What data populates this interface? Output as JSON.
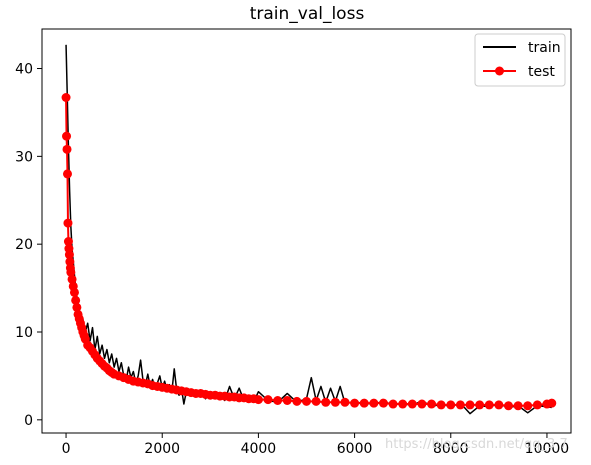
{
  "chart_data": {
    "type": "line",
    "title": "train_val_loss",
    "xlabel": "",
    "ylabel": "",
    "xlim": [
      -500,
      10500
    ],
    "ylim": [
      -1.5,
      44.5
    ],
    "xticks": [
      0,
      2000,
      4000,
      6000,
      8000,
      10000
    ],
    "yticks": [
      0,
      10,
      20,
      30,
      40
    ],
    "grid": false,
    "legend_position": "top-right",
    "series": [
      {
        "name": "train",
        "color": "#000000",
        "marker": "none",
        "x": [
          0,
          25,
          50,
          75,
          100,
          125,
          150,
          175,
          200,
          225,
          250,
          275,
          300,
          325,
          350,
          375,
          400,
          450,
          500,
          550,
          600,
          650,
          700,
          750,
          800,
          850,
          900,
          950,
          1000,
          1050,
          1100,
          1150,
          1200,
          1250,
          1300,
          1350,
          1400,
          1450,
          1500,
          1550,
          1600,
          1650,
          1700,
          1750,
          1800,
          1850,
          1900,
          1950,
          2000,
          2050,
          2100,
          2150,
          2200,
          2250,
          2300,
          2350,
          2400,
          2450,
          2500,
          2600,
          2700,
          2800,
          2900,
          3000,
          3100,
          3200,
          3300,
          3400,
          3500,
          3600,
          3700,
          3800,
          3900,
          4000,
          4200,
          4400,
          4600,
          4800,
          5000,
          5100,
          5200,
          5300,
          5400,
          5500,
          5600,
          5700,
          5800,
          6000,
          6200,
          6400,
          6600,
          6800,
          7000,
          7200,
          7400,
          7600,
          7800,
          8000,
          8200,
          8400,
          8600,
          8800,
          9000,
          9200,
          9400,
          9600,
          9800,
          10000,
          10100
        ],
        "values": [
          42.7,
          37.0,
          31.0,
          26.0,
          22.0,
          19.5,
          18.0,
          16.5,
          15.0,
          14.0,
          13.0,
          12.5,
          12.0,
          11.0,
          11.5,
          10.5,
          10.0,
          11.0,
          9.0,
          10.5,
          8.0,
          9.5,
          7.5,
          8.5,
          7.0,
          8.0,
          6.5,
          7.5,
          6.0,
          7.0,
          5.5,
          6.5,
          5.0,
          4.5,
          6.0,
          4.8,
          5.5,
          4.2,
          5.0,
          6.8,
          4.5,
          4.0,
          5.2,
          3.8,
          4.6,
          3.5,
          4.2,
          5.0,
          3.6,
          4.4,
          3.3,
          4.0,
          3.2,
          5.8,
          3.4,
          2.8,
          3.6,
          1.8,
          3.2,
          3.0,
          2.6,
          3.4,
          2.4,
          3.0,
          2.4,
          2.8,
          2.2,
          3.8,
          2.4,
          3.6,
          2.2,
          2.6,
          2.0,
          3.2,
          2.2,
          2.0,
          3.0,
          2.0,
          2.4,
          4.8,
          2.2,
          3.8,
          2.0,
          3.6,
          2.1,
          3.8,
          1.9,
          2.0,
          1.9,
          1.8,
          2.1,
          1.7,
          1.9,
          1.6,
          2.2,
          1.5,
          1.8,
          1.5,
          1.9,
          0.7,
          1.6,
          1.5,
          1.8,
          1.4,
          1.6,
          0.8,
          1.6,
          1.5,
          1.4
        ]
      },
      {
        "name": "test",
        "color": "#ff0000",
        "marker": "circle",
        "x": [
          0,
          10,
          20,
          30,
          40,
          50,
          60,
          70,
          80,
          90,
          100,
          125,
          150,
          175,
          200,
          225,
          250,
          275,
          300,
          325,
          350,
          375,
          400,
          450,
          500,
          550,
          600,
          650,
          700,
          750,
          800,
          850,
          900,
          950,
          1000,
          1100,
          1200,
          1300,
          1400,
          1500,
          1600,
          1700,
          1800,
          1900,
          2000,
          2100,
          2200,
          2300,
          2400,
          2500,
          2600,
          2700,
          2800,
          2900,
          3000,
          3100,
          3200,
          3300,
          3400,
          3500,
          3600,
          3700,
          3800,
          3900,
          4000,
          4200,
          4400,
          4600,
          4800,
          5000,
          5200,
          5400,
          5600,
          5800,
          6000,
          6200,
          6400,
          6600,
          6800,
          7000,
          7200,
          7400,
          7600,
          7800,
          8000,
          8200,
          8400,
          8600,
          8800,
          9000,
          9200,
          9400,
          9600,
          9800,
          10000,
          10100
        ],
        "values": [
          36.7,
          32.3,
          30.8,
          28.0,
          22.4,
          20.3,
          19.5,
          18.8,
          18.0,
          17.3,
          16.8,
          16.0,
          15.2,
          14.5,
          13.6,
          12.8,
          12.0,
          11.5,
          11.0,
          10.5,
          10.0,
          9.6,
          9.2,
          8.5,
          8.2,
          7.8,
          7.4,
          7.0,
          6.7,
          6.4,
          6.1,
          5.9,
          5.6,
          5.4,
          5.2,
          5.0,
          4.8,
          4.6,
          4.4,
          4.3,
          4.2,
          4.1,
          3.9,
          3.8,
          3.7,
          3.6,
          3.5,
          3.4,
          3.3,
          3.2,
          3.1,
          3.0,
          3.0,
          2.9,
          2.8,
          2.8,
          2.7,
          2.7,
          2.6,
          2.6,
          2.5,
          2.5,
          2.4,
          2.4,
          2.3,
          2.3,
          2.2,
          2.2,
          2.1,
          2.1,
          2.1,
          2.0,
          2.0,
          2.0,
          1.9,
          1.9,
          1.9,
          1.9,
          1.8,
          1.8,
          1.8,
          1.8,
          1.8,
          1.7,
          1.7,
          1.7,
          1.7,
          1.7,
          1.7,
          1.7,
          1.6,
          1.6,
          1.6,
          1.7,
          1.8,
          1.9
        ]
      }
    ]
  },
  "watermark": {
    "text": "https://blog.csdn.net/qq_3     7"
  }
}
